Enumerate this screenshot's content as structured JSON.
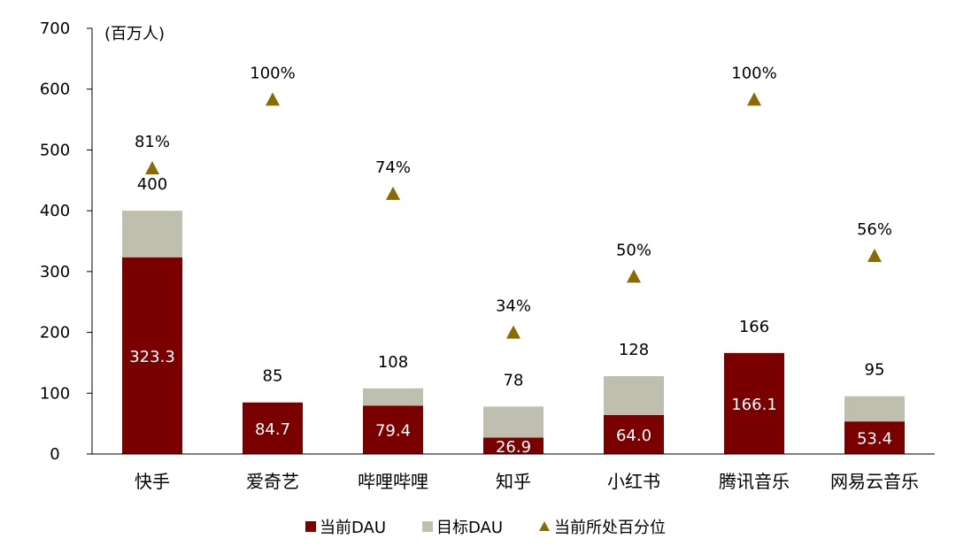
{
  "chart_data": {
    "type": "bar",
    "unit_label": "(百万人)",
    "categories": [
      "快手",
      "爱奇艺",
      "哔哩哔哩",
      "知乎",
      "小红书",
      "腾讯音乐",
      "网易云音乐"
    ],
    "series": [
      {
        "name": "当前DAU",
        "values": [
          323.3,
          84.7,
          79.4,
          26.9,
          64.0,
          166.1,
          53.4
        ],
        "labels": [
          "323.3",
          "84.7",
          "79.4",
          "26.9",
          "64.0",
          "166.1",
          "53.4"
        ],
        "color": "#7a0000"
      },
      {
        "name": "目标DAU",
        "values": [
          400,
          85,
          108,
          78,
          128,
          166,
          95
        ],
        "labels": [
          "400",
          "85",
          "108",
          "78",
          "128",
          "166",
          "95"
        ],
        "color": "#bfbfaf"
      },
      {
        "name": "当前所处百分位",
        "values": [
          81,
          100,
          74,
          34,
          50,
          100,
          56
        ],
        "labels": [
          "81%",
          "100%",
          "74%",
          "34%",
          "50%",
          "100%",
          "56%"
        ],
        "marker_y": [
          470,
          583,
          428,
          200,
          292,
          583,
          326
        ],
        "color": "#8b6a00"
      }
    ],
    "ylim": [
      0,
      700
    ],
    "yticks": [
      "0",
      "100",
      "200",
      "300",
      "400",
      "500",
      "600",
      "700"
    ],
    "grid": false,
    "legend": "bottom-center"
  }
}
